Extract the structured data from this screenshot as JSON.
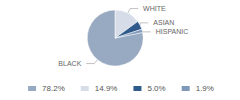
{
  "chart_data": {
    "type": "pie",
    "categories": [
      "BLACK",
      "WHITE",
      "ASIAN",
      "HISPANIC"
    ],
    "values": [
      78.2,
      14.9,
      5.0,
      1.9
    ],
    "value_labels": [
      "78.2%",
      "14.9%",
      "5.0%",
      "1.9%"
    ],
    "colors": [
      "#98a9c2",
      "#d6dde8",
      "#2f5a8c",
      "#7f99bb"
    ],
    "legend": "bottom"
  }
}
